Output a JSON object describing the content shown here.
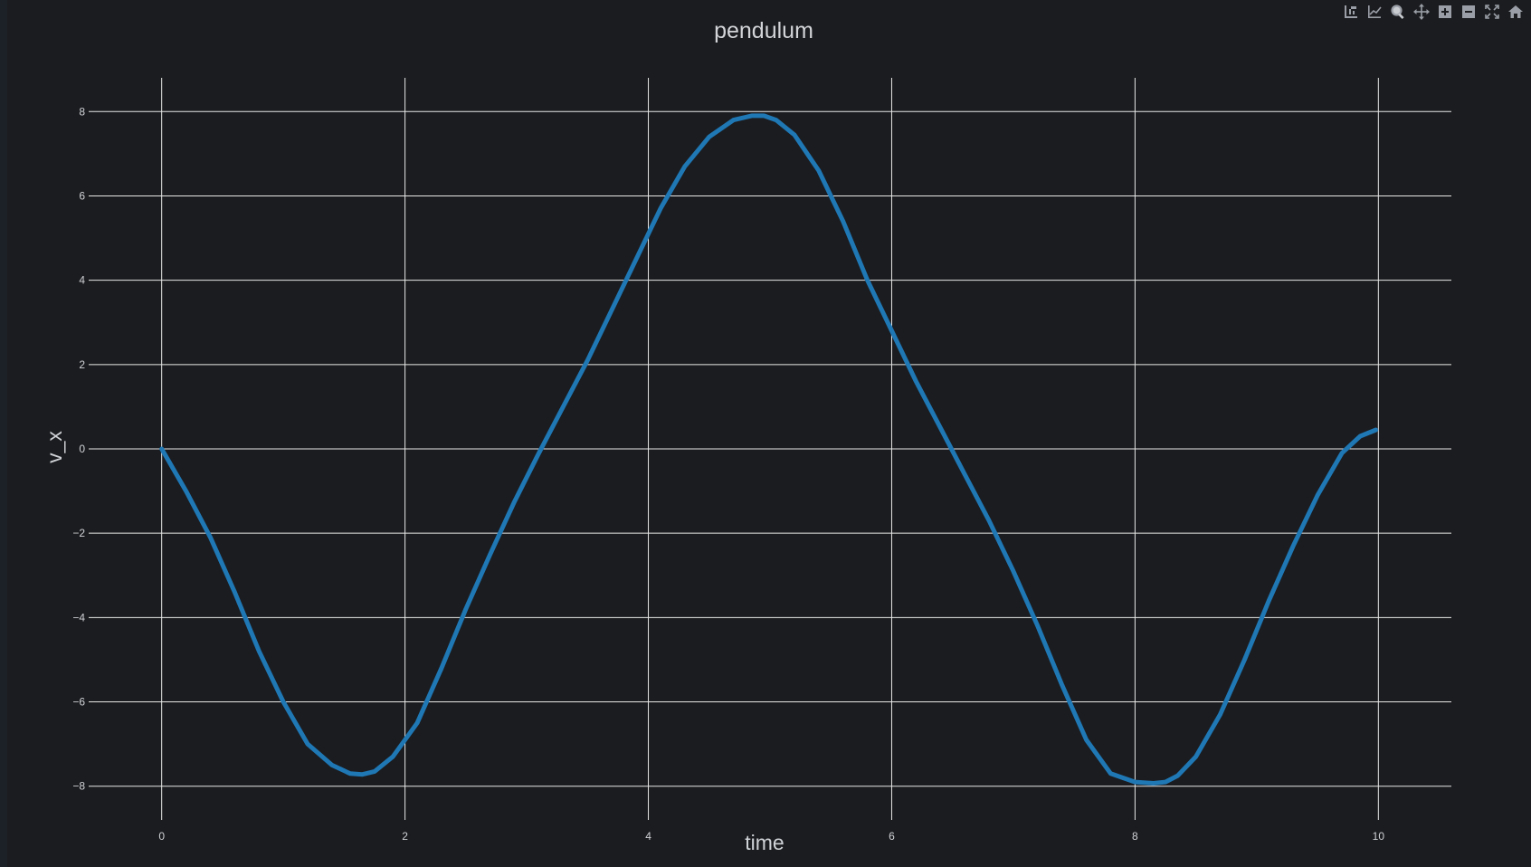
{
  "toolbar": {
    "buttons": [
      {
        "icon": "compare-hover-icon",
        "title": "Show closest data on hover"
      },
      {
        "icon": "compare-lines-icon",
        "title": "Compare data on hover"
      },
      {
        "icon": "zoom-icon",
        "title": "Zoom"
      },
      {
        "icon": "pan-icon",
        "title": "Pan"
      },
      {
        "icon": "zoom-in-icon",
        "title": "Zoom in"
      },
      {
        "icon": "zoom-out-icon",
        "title": "Zoom out"
      },
      {
        "icon": "autoscale-icon",
        "title": "Autoscale"
      },
      {
        "icon": "reset-axes-icon",
        "title": "Reset axes"
      }
    ]
  },
  "colors": {
    "background": "#1b1c1f",
    "grid": "#e8e8e8",
    "line": "#1f77b4"
  },
  "chart_data": {
    "type": "line",
    "title": "pendulum",
    "xlabel": "time",
    "ylabel": "v_x",
    "xlim": [
      -0.6,
      10.6
    ],
    "ylim": [
      -8.8,
      8.8
    ],
    "x_ticks": [
      0,
      2,
      4,
      6,
      8,
      10
    ],
    "y_ticks": [
      8,
      6,
      4,
      2,
      0,
      -2,
      -4,
      -6,
      -8
    ],
    "grid": true,
    "legend": "none",
    "series": [
      {
        "x": [
          0,
          0.2,
          0.4,
          0.6,
          0.8,
          1.0,
          1.2,
          1.4,
          1.55,
          1.65,
          1.75,
          1.9,
          2.1,
          2.3,
          2.5,
          2.7,
          2.9,
          3.1,
          3.3,
          3.5,
          3.7,
          3.9,
          4.1,
          4.3,
          4.5,
          4.7,
          4.85,
          4.95,
          5.05,
          5.2,
          5.4,
          5.6,
          5.8,
          6.0,
          6.2,
          6.4,
          6.6,
          6.8,
          7.0,
          7.2,
          7.4,
          7.6,
          7.8,
          8.0,
          8.15,
          8.25,
          8.35,
          8.5,
          8.7,
          8.9,
          9.1,
          9.3,
          9.5,
          9.7,
          9.85,
          9.98
        ],
        "y": [
          0,
          -1.0,
          -2.1,
          -3.4,
          -4.8,
          -6.0,
          -7.0,
          -7.5,
          -7.7,
          -7.72,
          -7.65,
          -7.3,
          -6.5,
          -5.2,
          -3.8,
          -2.5,
          -1.25,
          -0.1,
          1.0,
          2.1,
          3.3,
          4.5,
          5.7,
          6.7,
          7.4,
          7.8,
          7.9,
          7.9,
          7.8,
          7.45,
          6.6,
          5.4,
          4.0,
          2.8,
          1.6,
          0.5,
          -0.6,
          -1.7,
          -2.9,
          -4.2,
          -5.6,
          -6.9,
          -7.7,
          -7.9,
          -7.93,
          -7.9,
          -7.75,
          -7.3,
          -6.3,
          -5.0,
          -3.6,
          -2.3,
          -1.1,
          -0.1,
          0.3,
          0.45
        ]
      }
    ]
  }
}
